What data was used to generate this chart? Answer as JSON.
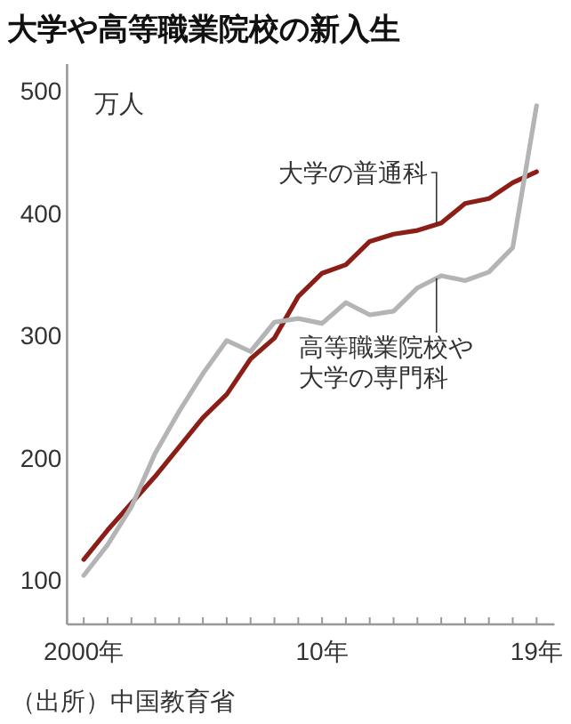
{
  "chart_data": {
    "type": "line",
    "title": "大学や高等職業院校の新入生",
    "ylabel": "万人",
    "categories": [
      "2000年",
      null,
      null,
      null,
      null,
      null,
      null,
      null,
      null,
      null,
      "10年",
      null,
      null,
      null,
      null,
      null,
      null,
      null,
      null,
      "19年"
    ],
    "series": [
      {
        "name": "大学の普通科",
        "color": "#8b1f17",
        "values": [
          117,
          141,
          163,
          185,
          209,
          233,
          252,
          281,
          298,
          332,
          351,
          358,
          377,
          383,
          386,
          392,
          408,
          412,
          425,
          434
        ]
      },
      {
        "name": "高等職業院校や大学の専門科",
        "color": "#b4b4b4",
        "values": [
          104,
          129,
          160,
          204,
          238,
          269,
          296,
          287,
          311,
          314,
          310,
          327,
          317,
          320,
          339,
          349,
          345,
          352,
          372,
          488
        ]
      }
    ],
    "ylim": [
      64,
      522
    ],
    "yticks": [
      100,
      200,
      300,
      400,
      500
    ],
    "grid": false,
    "legend": false,
    "marker": "none",
    "line_style": "solid",
    "annotations": [
      "（出所）中国教育省"
    ]
  }
}
